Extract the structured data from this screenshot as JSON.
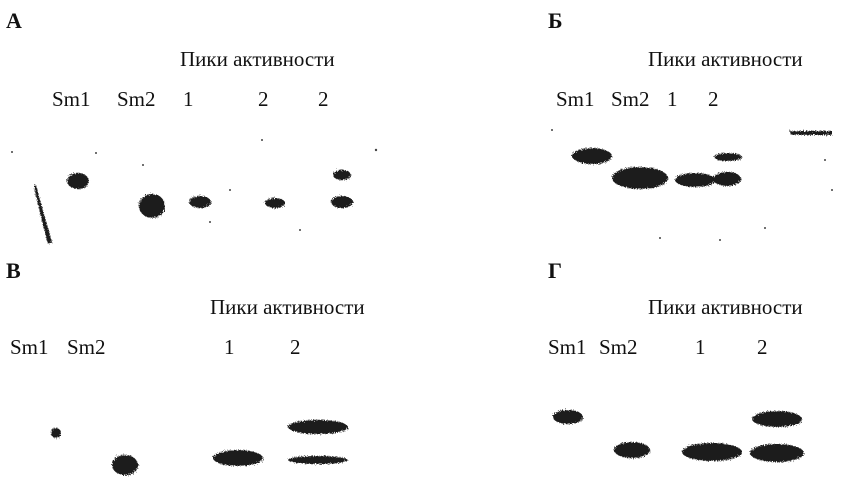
{
  "panels": [
    {
      "label": "А",
      "heading": "Пики активности",
      "lanes": [
        "Sm1",
        "Sm2",
        "1",
        "2",
        "2"
      ]
    },
    {
      "label": "Б",
      "heading": "Пики активности",
      "lanes": [
        "Sm1",
        "Sm2",
        "1",
        "2"
      ]
    },
    {
      "label": "В",
      "heading": "Пики активности",
      "lanes": [
        "Sm1",
        "Sm2",
        "1",
        "2"
      ]
    },
    {
      "label": "Г",
      "heading": "Пики активности",
      "lanes": [
        "Sm1",
        "Sm2",
        "1",
        "2"
      ]
    }
  ]
}
